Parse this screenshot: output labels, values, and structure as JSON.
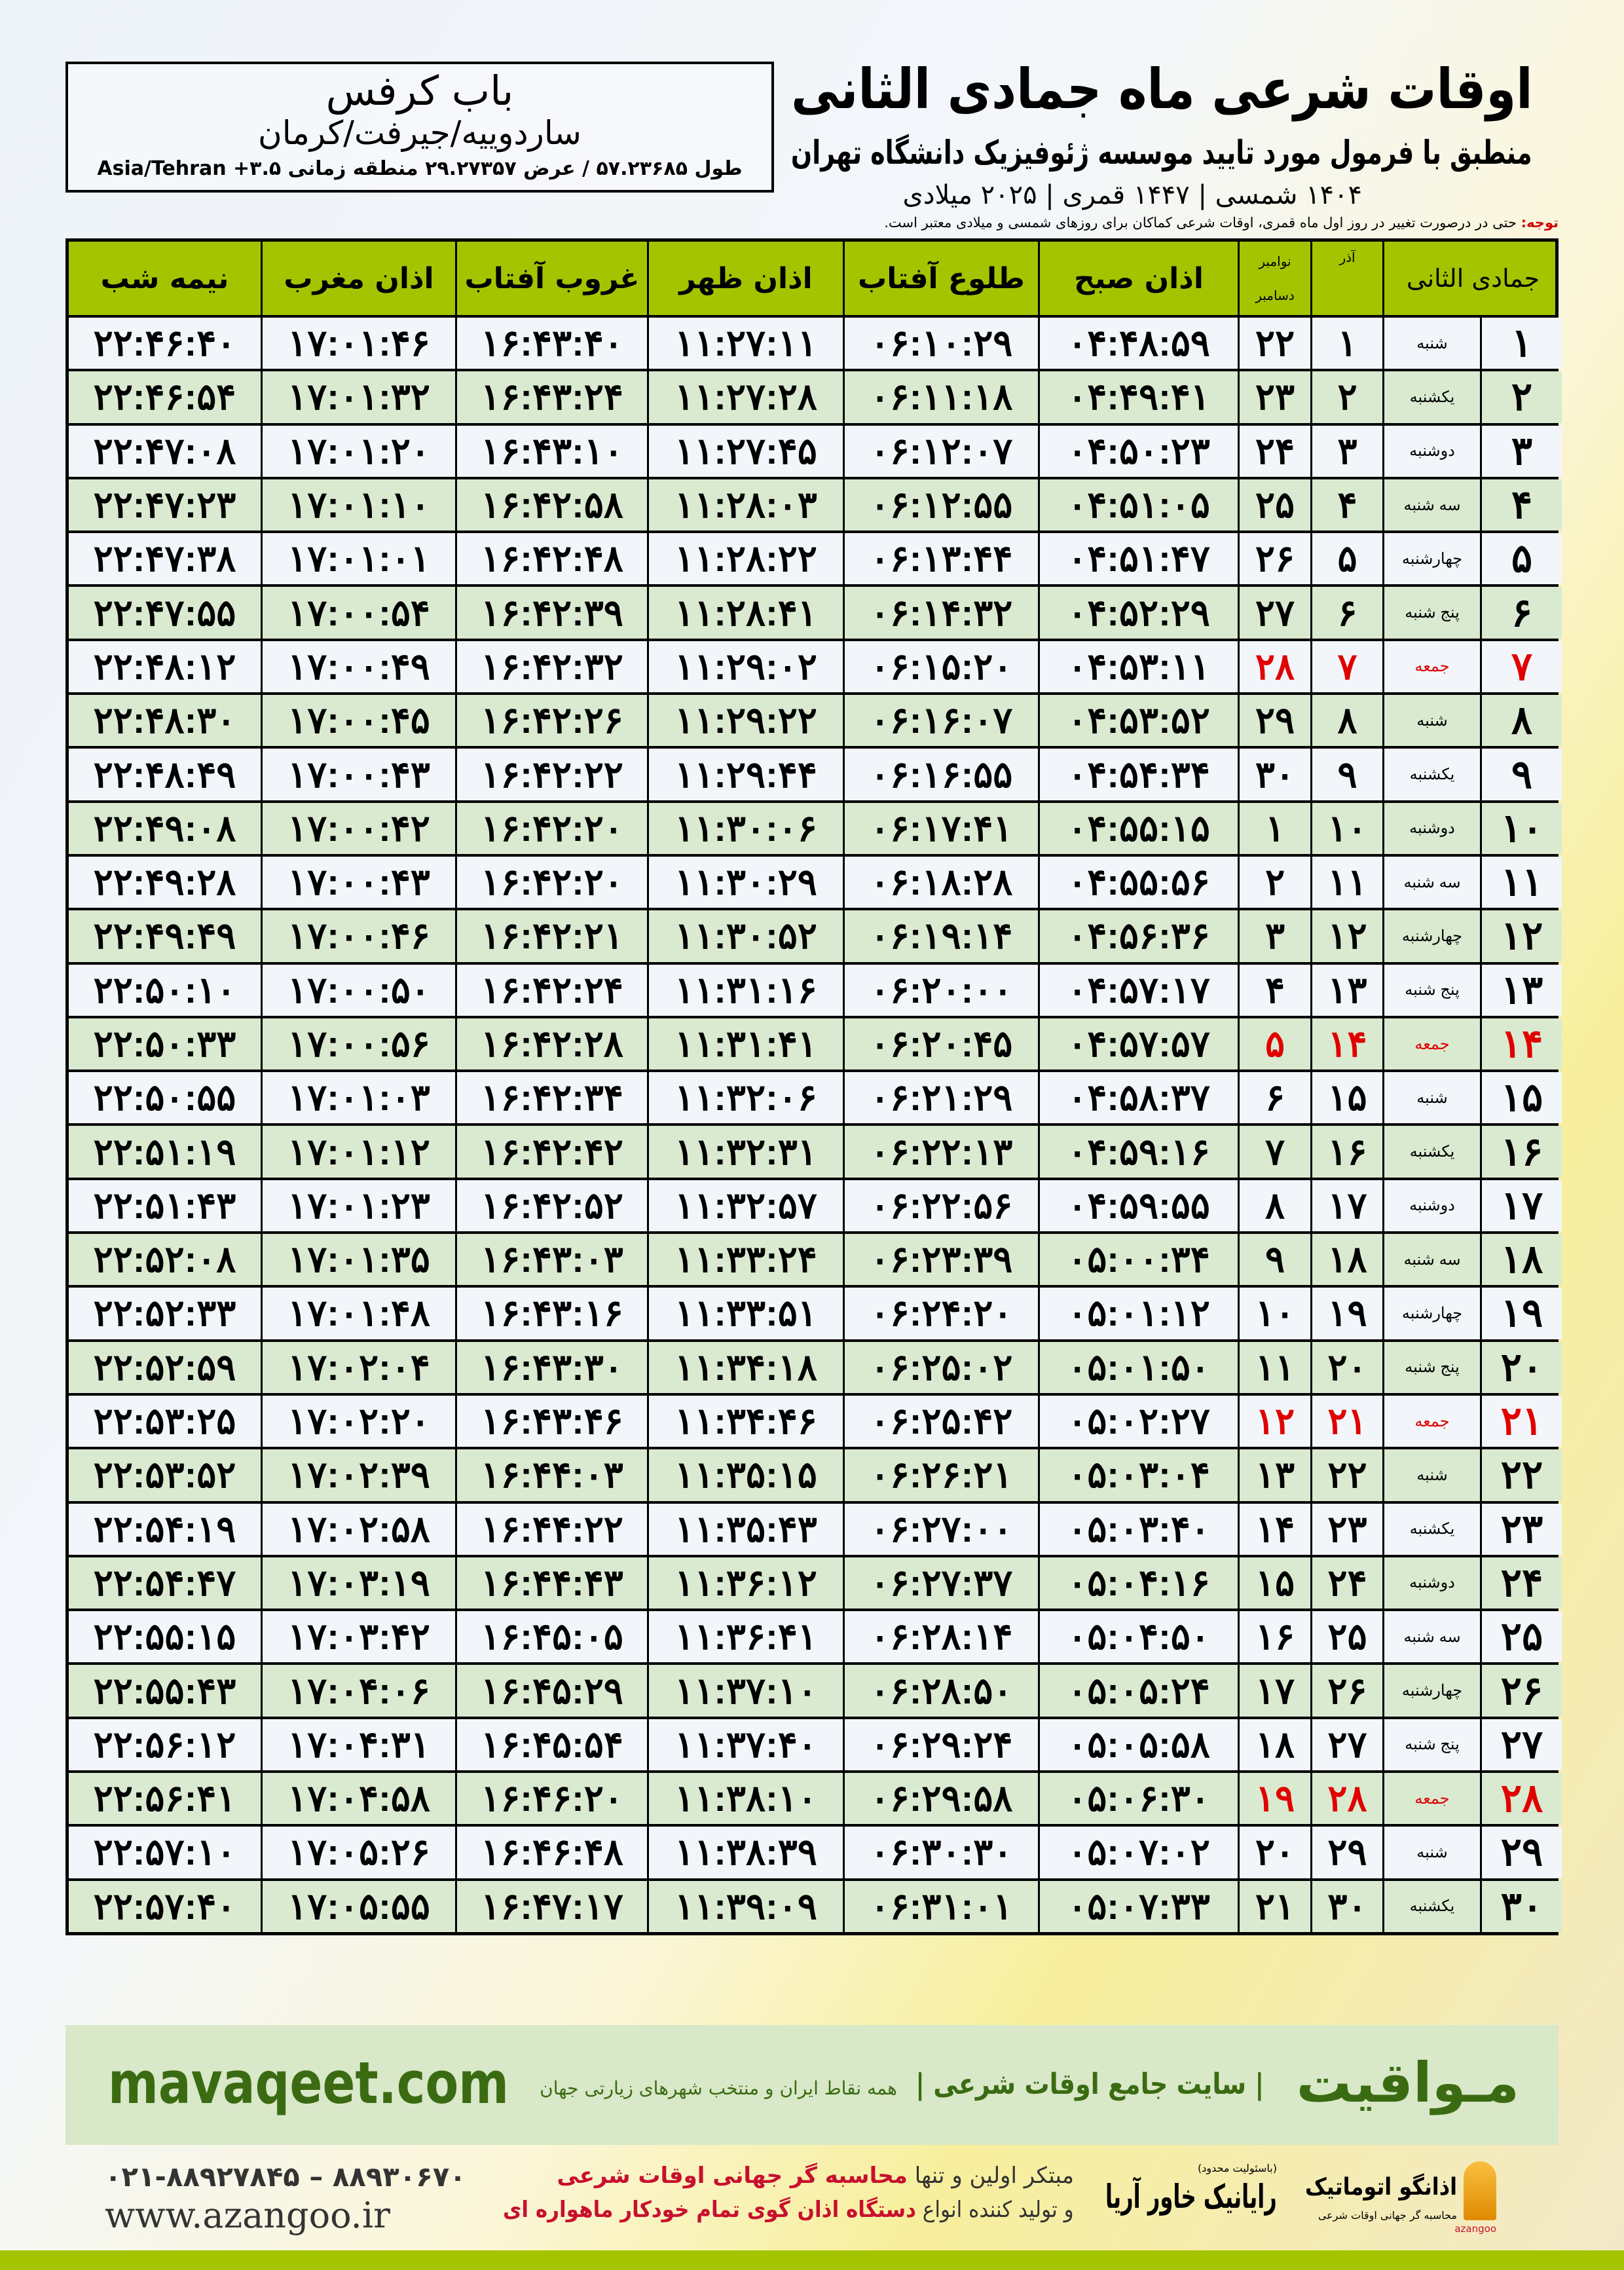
{
  "header": {
    "title": "اوقات شرعی ماه جمادی الثانی",
    "subtitle": "منطبق با فرمول مورد تایید موسسه ژئوفیزیک دانشگاه تهران",
    "dates": "۱۴۰۴ شمسی | ۱۴۴۷ قمری | ۲۰۲۵ میلادی"
  },
  "location": {
    "name": "باب کرفس",
    "city": "ساردوییه/جیرفت/کرمان",
    "geo": "طول ۵۷.۲۳۶۸۵ / عرض ۲۹.۲۷۳۵۷ منطقه زمانی ۳.۵+ Asia/Tehran"
  },
  "note": {
    "label": "توجه:",
    "text": " حتی در درصورت تغییر در روز اول ماه قمری، اوقات شرعی کماکان برای روزهای شمسی و میلادی معتبر است."
  },
  "colors": {
    "header_green": "#a5c400",
    "row_green": "#d9ead0",
    "holiday_red": "#e00000",
    "brand_green": "#3a6b12"
  },
  "table": {
    "columns": {
      "midnight": "نیمه شب",
      "maghrib": "اذان مغرب",
      "sunset": "غروب آفتاب",
      "dhuhr": "اذان ظهر",
      "sunrise": "طلوع آفتاب",
      "fajr": "اذان صبح",
      "greg_top": "نوامبر",
      "greg_bottom": "دسامبر",
      "azar": "آذر",
      "hijri": "جمادی الثانی"
    },
    "rows": [
      {
        "hijri": "۱",
        "weekday": "شنبه",
        "azar": "۱",
        "greg": "۲۲",
        "fajr": "۰۴:۴۸:۵۹",
        "sunrise": "۰۶:۱۰:۲۹",
        "dhuhr": "۱۱:۲۷:۱۱",
        "sunset": "۱۶:۴۳:۴۰",
        "maghrib": "۱۷:۰۱:۴۶",
        "midnight": "۲۲:۴۶:۴۰",
        "holiday": false
      },
      {
        "hijri": "۲",
        "weekday": "یکشنبه",
        "azar": "۲",
        "greg": "۲۳",
        "fajr": "۰۴:۴۹:۴۱",
        "sunrise": "۰۶:۱۱:۱۸",
        "dhuhr": "۱۱:۲۷:۲۸",
        "sunset": "۱۶:۴۳:۲۴",
        "maghrib": "۱۷:۰۱:۳۲",
        "midnight": "۲۲:۴۶:۵۴",
        "holiday": false
      },
      {
        "hijri": "۳",
        "weekday": "دوشنبه",
        "azar": "۳",
        "greg": "۲۴",
        "fajr": "۰۴:۵۰:۲۳",
        "sunrise": "۰۶:۱۲:۰۷",
        "dhuhr": "۱۱:۲۷:۴۵",
        "sunset": "۱۶:۴۳:۱۰",
        "maghrib": "۱۷:۰۱:۲۰",
        "midnight": "۲۲:۴۷:۰۸",
        "holiday": false
      },
      {
        "hijri": "۴",
        "weekday": "سه شنبه",
        "azar": "۴",
        "greg": "۲۵",
        "fajr": "۰۴:۵۱:۰۵",
        "sunrise": "۰۶:۱۲:۵۵",
        "dhuhr": "۱۱:۲۸:۰۳",
        "sunset": "۱۶:۴۲:۵۸",
        "maghrib": "۱۷:۰۱:۱۰",
        "midnight": "۲۲:۴۷:۲۳",
        "holiday": false
      },
      {
        "hijri": "۵",
        "weekday": "چهارشنبه",
        "azar": "۵",
        "greg": "۲۶",
        "fajr": "۰۴:۵۱:۴۷",
        "sunrise": "۰۶:۱۳:۴۴",
        "dhuhr": "۱۱:۲۸:۲۲",
        "sunset": "۱۶:۴۲:۴۸",
        "maghrib": "۱۷:۰۱:۰۱",
        "midnight": "۲۲:۴۷:۳۸",
        "holiday": false
      },
      {
        "hijri": "۶",
        "weekday": "پنج شنبه",
        "azar": "۶",
        "greg": "۲۷",
        "fajr": "۰۴:۵۲:۲۹",
        "sunrise": "۰۶:۱۴:۳۲",
        "dhuhr": "۱۱:۲۸:۴۱",
        "sunset": "۱۶:۴۲:۳۹",
        "maghrib": "۱۷:۰۰:۵۴",
        "midnight": "۲۲:۴۷:۵۵",
        "holiday": false
      },
      {
        "hijri": "۷",
        "weekday": "جمعه",
        "azar": "۷",
        "greg": "۲۸",
        "fajr": "۰۴:۵۳:۱۱",
        "sunrise": "۰۶:۱۵:۲۰",
        "dhuhr": "۱۱:۲۹:۰۲",
        "sunset": "۱۶:۴۲:۳۲",
        "maghrib": "۱۷:۰۰:۴۹",
        "midnight": "۲۲:۴۸:۱۲",
        "holiday": true
      },
      {
        "hijri": "۸",
        "weekday": "شنبه",
        "azar": "۸",
        "greg": "۲۹",
        "fajr": "۰۴:۵۳:۵۲",
        "sunrise": "۰۶:۱۶:۰۷",
        "dhuhr": "۱۱:۲۹:۲۲",
        "sunset": "۱۶:۴۲:۲۶",
        "maghrib": "۱۷:۰۰:۴۵",
        "midnight": "۲۲:۴۸:۳۰",
        "holiday": false
      },
      {
        "hijri": "۹",
        "weekday": "یکشنبه",
        "azar": "۹",
        "greg": "۳۰",
        "fajr": "۰۴:۵۴:۳۴",
        "sunrise": "۰۶:۱۶:۵۵",
        "dhuhr": "۱۱:۲۹:۴۴",
        "sunset": "۱۶:۴۲:۲۲",
        "maghrib": "۱۷:۰۰:۴۳",
        "midnight": "۲۲:۴۸:۴۹",
        "holiday": false
      },
      {
        "hijri": "۱۰",
        "weekday": "دوشنبه",
        "azar": "۱۰",
        "greg": "۱",
        "fajr": "۰۴:۵۵:۱۵",
        "sunrise": "۰۶:۱۷:۴۱",
        "dhuhr": "۱۱:۳۰:۰۶",
        "sunset": "۱۶:۴۲:۲۰",
        "maghrib": "۱۷:۰۰:۴۲",
        "midnight": "۲۲:۴۹:۰۸",
        "holiday": false
      },
      {
        "hijri": "۱۱",
        "weekday": "سه شنبه",
        "azar": "۱۱",
        "greg": "۲",
        "fajr": "۰۴:۵۵:۵۶",
        "sunrise": "۰۶:۱۸:۲۸",
        "dhuhr": "۱۱:۳۰:۲۹",
        "sunset": "۱۶:۴۲:۲۰",
        "maghrib": "۱۷:۰۰:۴۳",
        "midnight": "۲۲:۴۹:۲۸",
        "holiday": false
      },
      {
        "hijri": "۱۲",
        "weekday": "چهارشنبه",
        "azar": "۱۲",
        "greg": "۳",
        "fajr": "۰۴:۵۶:۳۶",
        "sunrise": "۰۶:۱۹:۱۴",
        "dhuhr": "۱۱:۳۰:۵۲",
        "sunset": "۱۶:۴۲:۲۱",
        "maghrib": "۱۷:۰۰:۴۶",
        "midnight": "۲۲:۴۹:۴۹",
        "holiday": false
      },
      {
        "hijri": "۱۳",
        "weekday": "پنج شنبه",
        "azar": "۱۳",
        "greg": "۴",
        "fajr": "۰۴:۵۷:۱۷",
        "sunrise": "۰۶:۲۰:۰۰",
        "dhuhr": "۱۱:۳۱:۱۶",
        "sunset": "۱۶:۴۲:۲۴",
        "maghrib": "۱۷:۰۰:۵۰",
        "midnight": "۲۲:۵۰:۱۰",
        "holiday": false
      },
      {
        "hijri": "۱۴",
        "weekday": "جمعه",
        "azar": "۱۴",
        "greg": "۵",
        "fajr": "۰۴:۵۷:۵۷",
        "sunrise": "۰۶:۲۰:۴۵",
        "dhuhr": "۱۱:۳۱:۴۱",
        "sunset": "۱۶:۴۲:۲۸",
        "maghrib": "۱۷:۰۰:۵۶",
        "midnight": "۲۲:۵۰:۳۳",
        "holiday": true
      },
      {
        "hijri": "۱۵",
        "weekday": "شنبه",
        "azar": "۱۵",
        "greg": "۶",
        "fajr": "۰۴:۵۸:۳۷",
        "sunrise": "۰۶:۲۱:۲۹",
        "dhuhr": "۱۱:۳۲:۰۶",
        "sunset": "۱۶:۴۲:۳۴",
        "maghrib": "۱۷:۰۱:۰۳",
        "midnight": "۲۲:۵۰:۵۵",
        "holiday": false
      },
      {
        "hijri": "۱۶",
        "weekday": "یکشنبه",
        "azar": "۱۶",
        "greg": "۷",
        "fajr": "۰۴:۵۹:۱۶",
        "sunrise": "۰۶:۲۲:۱۳",
        "dhuhr": "۱۱:۳۲:۳۱",
        "sunset": "۱۶:۴۲:۴۲",
        "maghrib": "۱۷:۰۱:۱۲",
        "midnight": "۲۲:۵۱:۱۹",
        "holiday": false
      },
      {
        "hijri": "۱۷",
        "weekday": "دوشنبه",
        "azar": "۱۷",
        "greg": "۸",
        "fajr": "۰۴:۵۹:۵۵",
        "sunrise": "۰۶:۲۲:۵۶",
        "dhuhr": "۱۱:۳۲:۵۷",
        "sunset": "۱۶:۴۲:۵۲",
        "maghrib": "۱۷:۰۱:۲۳",
        "midnight": "۲۲:۵۱:۴۳",
        "holiday": false
      },
      {
        "hijri": "۱۸",
        "weekday": "سه شنبه",
        "azar": "۱۸",
        "greg": "۹",
        "fajr": "۰۵:۰۰:۳۴",
        "sunrise": "۰۶:۲۳:۳۹",
        "dhuhr": "۱۱:۳۳:۲۴",
        "sunset": "۱۶:۴۳:۰۳",
        "maghrib": "۱۷:۰۱:۳۵",
        "midnight": "۲۲:۵۲:۰۸",
        "holiday": false
      },
      {
        "hijri": "۱۹",
        "weekday": "چهارشنبه",
        "azar": "۱۹",
        "greg": "۱۰",
        "fajr": "۰۵:۰۱:۱۲",
        "sunrise": "۰۶:۲۴:۲۰",
        "dhuhr": "۱۱:۳۳:۵۱",
        "sunset": "۱۶:۴۳:۱۶",
        "maghrib": "۱۷:۰۱:۴۸",
        "midnight": "۲۲:۵۲:۳۳",
        "holiday": false
      },
      {
        "hijri": "۲۰",
        "weekday": "پنج شنبه",
        "azar": "۲۰",
        "greg": "۱۱",
        "fajr": "۰۵:۰۱:۵۰",
        "sunrise": "۰۶:۲۵:۰۲",
        "dhuhr": "۱۱:۳۴:۱۸",
        "sunset": "۱۶:۴۳:۳۰",
        "maghrib": "۱۷:۰۲:۰۴",
        "midnight": "۲۲:۵۲:۵۹",
        "holiday": false
      },
      {
        "hijri": "۲۱",
        "weekday": "جمعه",
        "azar": "۲۱",
        "greg": "۱۲",
        "fajr": "۰۵:۰۲:۲۷",
        "sunrise": "۰۶:۲۵:۴۲",
        "dhuhr": "۱۱:۳۴:۴۶",
        "sunset": "۱۶:۴۳:۴۶",
        "maghrib": "۱۷:۰۲:۲۰",
        "midnight": "۲۲:۵۳:۲۵",
        "holiday": true
      },
      {
        "hijri": "۲۲",
        "weekday": "شنبه",
        "azar": "۲۲",
        "greg": "۱۳",
        "fajr": "۰۵:۰۳:۰۴",
        "sunrise": "۰۶:۲۶:۲۱",
        "dhuhr": "۱۱:۳۵:۱۵",
        "sunset": "۱۶:۴۴:۰۳",
        "maghrib": "۱۷:۰۲:۳۹",
        "midnight": "۲۲:۵۳:۵۲",
        "holiday": false
      },
      {
        "hijri": "۲۳",
        "weekday": "یکشنبه",
        "azar": "۲۳",
        "greg": "۱۴",
        "fajr": "۰۵:۰۳:۴۰",
        "sunrise": "۰۶:۲۷:۰۰",
        "dhuhr": "۱۱:۳۵:۴۳",
        "sunset": "۱۶:۴۴:۲۲",
        "maghrib": "۱۷:۰۲:۵۸",
        "midnight": "۲۲:۵۴:۱۹",
        "holiday": false
      },
      {
        "hijri": "۲۴",
        "weekday": "دوشنبه",
        "azar": "۲۴",
        "greg": "۱۵",
        "fajr": "۰۵:۰۴:۱۶",
        "sunrise": "۰۶:۲۷:۳۷",
        "dhuhr": "۱۱:۳۶:۱۲",
        "sunset": "۱۶:۴۴:۴۳",
        "maghrib": "۱۷:۰۳:۱۹",
        "midnight": "۲۲:۵۴:۴۷",
        "holiday": false
      },
      {
        "hijri": "۲۵",
        "weekday": "سه شنبه",
        "azar": "۲۵",
        "greg": "۱۶",
        "fajr": "۰۵:۰۴:۵۰",
        "sunrise": "۰۶:۲۸:۱۴",
        "dhuhr": "۱۱:۳۶:۴۱",
        "sunset": "۱۶:۴۵:۰۵",
        "maghrib": "۱۷:۰۳:۴۲",
        "midnight": "۲۲:۵۵:۱۵",
        "holiday": false
      },
      {
        "hijri": "۲۶",
        "weekday": "چهارشنبه",
        "azar": "۲۶",
        "greg": "۱۷",
        "fajr": "۰۵:۰۵:۲۴",
        "sunrise": "۰۶:۲۸:۵۰",
        "dhuhr": "۱۱:۳۷:۱۰",
        "sunset": "۱۶:۴۵:۲۹",
        "maghrib": "۱۷:۰۴:۰۶",
        "midnight": "۲۲:۵۵:۴۳",
        "holiday": false
      },
      {
        "hijri": "۲۷",
        "weekday": "پنج شنبه",
        "azar": "۲۷",
        "greg": "۱۸",
        "fajr": "۰۵:۰۵:۵۸",
        "sunrise": "۰۶:۲۹:۲۴",
        "dhuhr": "۱۱:۳۷:۴۰",
        "sunset": "۱۶:۴۵:۵۴",
        "maghrib": "۱۷:۰۴:۳۱",
        "midnight": "۲۲:۵۶:۱۲",
        "holiday": false
      },
      {
        "hijri": "۲۸",
        "weekday": "جمعه",
        "azar": "۲۸",
        "greg": "۱۹",
        "fajr": "۰۵:۰۶:۳۰",
        "sunrise": "۰۶:۲۹:۵۸",
        "dhuhr": "۱۱:۳۸:۱۰",
        "sunset": "۱۶:۴۶:۲۰",
        "maghrib": "۱۷:۰۴:۵۸",
        "midnight": "۲۲:۵۶:۴۱",
        "holiday": true
      },
      {
        "hijri": "۲۹",
        "weekday": "شنبه",
        "azar": "۲۹",
        "greg": "۲۰",
        "fajr": "۰۵:۰۷:۰۲",
        "sunrise": "۰۶:۳۰:۳۰",
        "dhuhr": "۱۱:۳۸:۳۹",
        "sunset": "۱۶:۴۶:۴۸",
        "maghrib": "۱۷:۰۵:۲۶",
        "midnight": "۲۲:۵۷:۱۰",
        "holiday": false
      },
      {
        "hijri": "۳۰",
        "weekday": "یکشنبه",
        "azar": "۳۰",
        "greg": "۲۱",
        "fajr": "۰۵:۰۷:۳۳",
        "sunrise": "۰۶:۳۱:۰۱",
        "dhuhr": "۱۱:۳۹:۰۹",
        "sunset": "۱۶:۴۷:۱۷",
        "maghrib": "۱۷:۰۵:۵۵",
        "midnight": "۲۲:۵۷:۴۰",
        "holiday": false
      }
    ]
  },
  "banner": {
    "logo": "مـواقیت",
    "tagline": "| سایت جامع اوقات شرعی |",
    "tagline2": "همه نقاط ایران و منتخب شهرهای زیارتی جهان",
    "url": "mavaqeet.com"
  },
  "footer": {
    "phone": "۰۲۱-۸۸۹۲۷۸۴۵ – ۸۸۹۳۰۶۷۰",
    "website": "www.azangoo.ir",
    "promo1a": "مبتکر اولین و تنها ",
    "promo1b": "محاسبه گر جهانی اوقات شرعی",
    "promo2a": "و تولید کننده انواع ",
    "promo2b": "دستگاه اذان گوی تمام خودکار ماهواره ای",
    "raynik_note": "(باسئولیت محدود)",
    "raynik": "رایانیک خاور آریا",
    "azangoo": "اذانگو اتوماتیک",
    "azangoo_sub": "محاسبه گر جهانی اوقات شرعی",
    "azangoo_en": "azangoo"
  }
}
